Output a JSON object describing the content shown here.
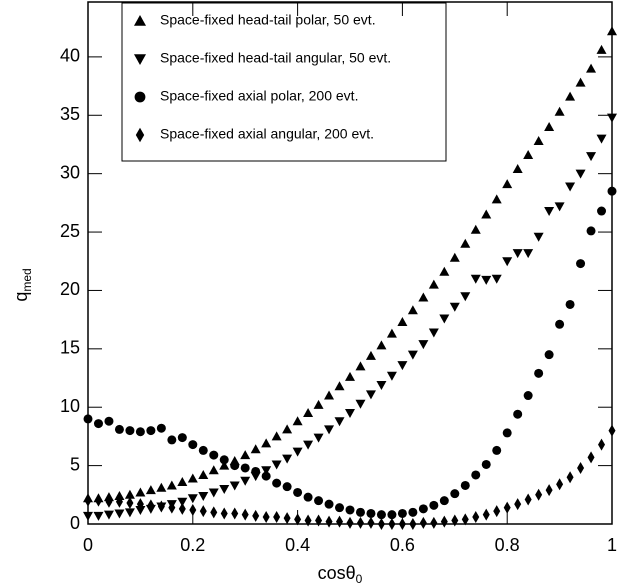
{
  "chart_data": {
    "type": "scatter",
    "xlabel": "cosθ",
    "xlabel_sub": "0",
    "ylabel": "q",
    "ylabel_sub": "med",
    "xlim": [
      0,
      1
    ],
    "ylim": [
      0,
      44.7
    ],
    "xticks": [
      0,
      0.2,
      0.4,
      0.6,
      0.8,
      1
    ],
    "yticks": [
      0,
      5,
      10,
      15,
      20,
      25,
      30,
      35,
      40
    ],
    "x": [
      0,
      0.02,
      0.04,
      0.06,
      0.08,
      0.1,
      0.12,
      0.14,
      0.16,
      0.18,
      0.2,
      0.22,
      0.24,
      0.26,
      0.28,
      0.3,
      0.32,
      0.34,
      0.36,
      0.38,
      0.4,
      0.42,
      0.44,
      0.46,
      0.48,
      0.5,
      0.52,
      0.54,
      0.56,
      0.58,
      0.6,
      0.62,
      0.64,
      0.66,
      0.68,
      0.7,
      0.72,
      0.74,
      0.76,
      0.78,
      0.8,
      0.82,
      0.84,
      0.86,
      0.88,
      0.9,
      0.92,
      0.94,
      0.96,
      0.98,
      1
    ],
    "series": [
      {
        "name": "Space-fixed head-tail polar, 50 evt.",
        "marker": "triangle-up",
        "color": "#000000",
        "values": [
          2.2,
          2.2,
          2.3,
          2.4,
          2.5,
          2.7,
          2.9,
          3.1,
          3.3,
          3.6,
          3.9,
          4.2,
          4.6,
          5.0,
          5.4,
          5.9,
          6.4,
          6.9,
          7.5,
          8.1,
          8.8,
          9.5,
          10.2,
          11.0,
          11.8,
          12.6,
          13.5,
          14.4,
          15.3,
          16.3,
          17.3,
          18.3,
          19.4,
          20.5,
          21.6,
          22.8,
          24.0,
          25.2,
          26.5,
          27.8,
          29.1,
          30.4,
          31.6,
          32.8,
          34.0,
          35.3,
          36.6,
          37.8,
          39.0,
          40.6,
          42.2
        ]
      },
      {
        "name": "Space-fixed head-tail angular, 50 evt.",
        "marker": "triangle-down",
        "color": "#000000",
        "values": [
          0.7,
          0.7,
          0.8,
          0.9,
          1.0,
          1.2,
          1.3,
          1.5,
          1.7,
          1.9,
          2.2,
          2.4,
          2.7,
          3.0,
          3.3,
          3.7,
          4.1,
          4.6,
          5.1,
          5.6,
          6.2,
          6.8,
          7.4,
          8.1,
          8.8,
          9.5,
          10.3,
          11.1,
          11.9,
          12.7,
          13.6,
          14.5,
          15.4,
          16.4,
          17.6,
          18.6,
          19.5,
          21.0,
          20.9,
          21.0,
          22.5,
          23.2,
          23.2,
          24.6,
          26.8,
          27.2,
          28.9,
          30.0,
          31.5,
          33.0,
          34.8
        ]
      },
      {
        "name": "Space-fixed axial polar, 200 evt.",
        "marker": "circle",
        "color": "#000000",
        "values": [
          9.0,
          8.6,
          8.8,
          8.1,
          8.0,
          7.9,
          8.0,
          8.2,
          7.2,
          7.4,
          6.8,
          6.3,
          5.9,
          5.5,
          5.0,
          4.8,
          4.5,
          4.1,
          3.5,
          3.2,
          2.7,
          2.3,
          2.0,
          1.7,
          1.4,
          1.2,
          1.0,
          0.9,
          0.8,
          0.8,
          0.9,
          1.0,
          1.3,
          1.6,
          2.0,
          2.6,
          3.3,
          4.2,
          5.1,
          6.3,
          7.8,
          9.4,
          11.0,
          12.9,
          14.5,
          17.1,
          18.8,
          22.3,
          25.1,
          26.8,
          28.5
        ]
      },
      {
        "name": "Space-fixed axial angular, 200 evt.",
        "marker": "diamond",
        "color": "#000000",
        "values": [
          2.0,
          2.0,
          1.9,
          1.9,
          1.8,
          1.7,
          1.6,
          1.5,
          1.4,
          1.3,
          1.2,
          1.1,
          1.0,
          0.9,
          0.9,
          0.8,
          0.7,
          0.6,
          0.6,
          0.5,
          0.4,
          0.3,
          0.3,
          0.2,
          0.2,
          0.1,
          0.1,
          0.1,
          0.0,
          0.0,
          0.0,
          0.0,
          0.1,
          0.1,
          0.2,
          0.3,
          0.4,
          0.6,
          0.8,
          1.1,
          1.4,
          1.7,
          2.1,
          2.5,
          2.9,
          3.4,
          4.0,
          4.8,
          5.7,
          6.8,
          8.0
        ]
      }
    ]
  }
}
